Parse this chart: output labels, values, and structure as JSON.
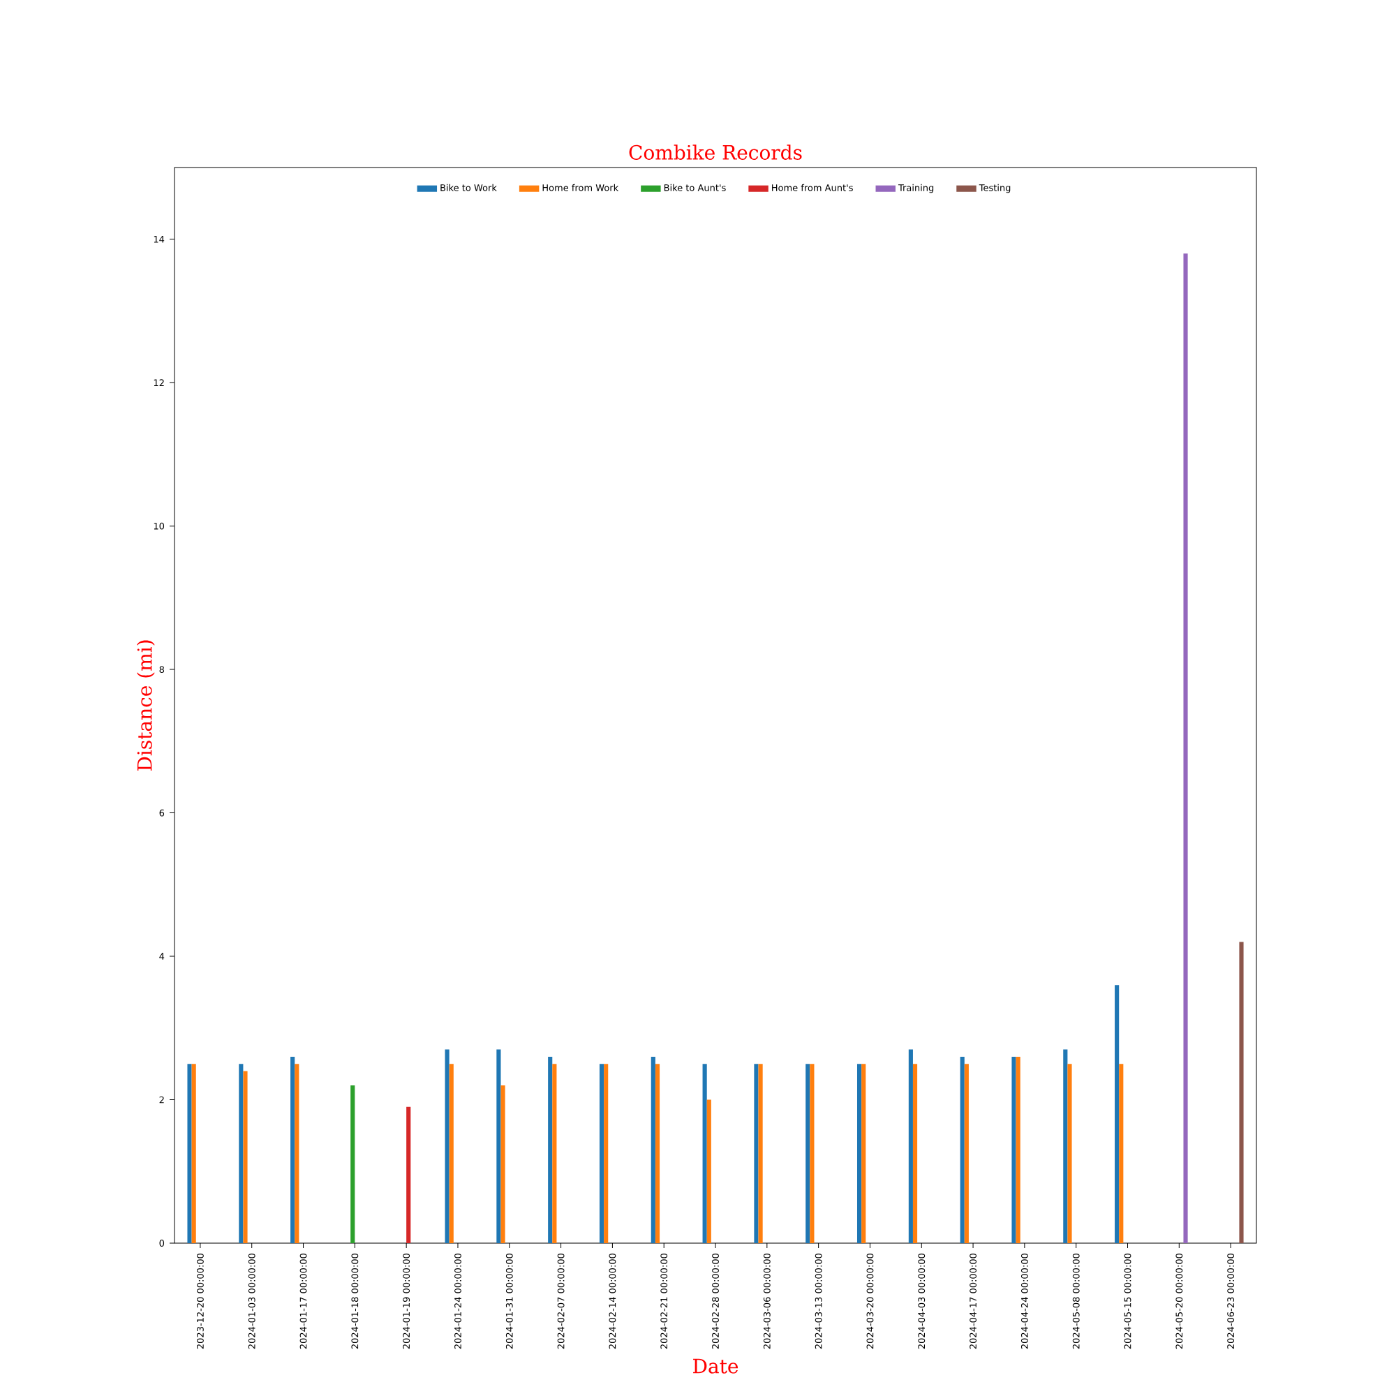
{
  "chart_data": {
    "type": "bar",
    "title": "Combike Records",
    "xlabel": "Date",
    "ylabel": "Distance (mi)",
    "categories": [
      "2023-12-20 00:00:00",
      "2024-01-03 00:00:00",
      "2024-01-17 00:00:00",
      "2024-01-18 00:00:00",
      "2024-01-19 00:00:00",
      "2024-01-24 00:00:00",
      "2024-01-31 00:00:00",
      "2024-02-07 00:00:00",
      "2024-02-14 00:00:00",
      "2024-02-21 00:00:00",
      "2024-02-28 00:00:00",
      "2024-03-06 00:00:00",
      "2024-03-13 00:00:00",
      "2024-03-20 00:00:00",
      "2024-04-03 00:00:00",
      "2024-04-17 00:00:00",
      "2024-04-24 00:00:00",
      "2024-05-08 00:00:00",
      "2024-05-15 00:00:00",
      "2024-05-20 00:00:00",
      "2024-06-23 00:00:00"
    ],
    "series": [
      {
        "name": "Bike to Work",
        "color": "#1f77b4",
        "values": [
          2.5,
          2.5,
          2.6,
          null,
          null,
          2.7,
          2.7,
          2.6,
          2.5,
          2.6,
          2.5,
          2.5,
          2.5,
          2.5,
          2.7,
          2.6,
          2.6,
          2.7,
          3.6,
          null,
          null
        ]
      },
      {
        "name": "Home from Work",
        "color": "#ff7f0e",
        "values": [
          2.5,
          2.4,
          2.5,
          null,
          null,
          2.5,
          2.2,
          2.5,
          2.5,
          2.5,
          2.0,
          2.5,
          2.5,
          2.5,
          2.5,
          2.5,
          2.6,
          2.5,
          2.5,
          null,
          null
        ]
      },
      {
        "name": "Bike to Aunt's",
        "color": "#2ca02c",
        "values": [
          null,
          null,
          null,
          2.2,
          null,
          null,
          null,
          null,
          null,
          null,
          null,
          null,
          null,
          null,
          null,
          null,
          null,
          null,
          null,
          null,
          null
        ]
      },
      {
        "name": "Home from Aunt's",
        "color": "#d62728",
        "values": [
          null,
          null,
          null,
          null,
          1.9,
          null,
          null,
          null,
          null,
          null,
          null,
          null,
          null,
          null,
          null,
          null,
          null,
          null,
          null,
          null,
          null
        ]
      },
      {
        "name": "Training",
        "color": "#9467bd",
        "values": [
          null,
          null,
          null,
          null,
          null,
          null,
          null,
          null,
          null,
          null,
          null,
          null,
          null,
          null,
          null,
          null,
          null,
          null,
          null,
          13.8,
          null
        ]
      },
      {
        "name": "Testing",
        "color": "#8c564b",
        "values": [
          null,
          null,
          null,
          null,
          null,
          null,
          null,
          null,
          null,
          null,
          null,
          null,
          null,
          null,
          null,
          null,
          null,
          null,
          null,
          null,
          4.2
        ]
      }
    ],
    "ylim": [
      0,
      15
    ],
    "yticks": [
      0,
      2,
      4,
      6,
      8,
      10,
      12,
      14
    ],
    "grid": false,
    "legend": "top"
  }
}
